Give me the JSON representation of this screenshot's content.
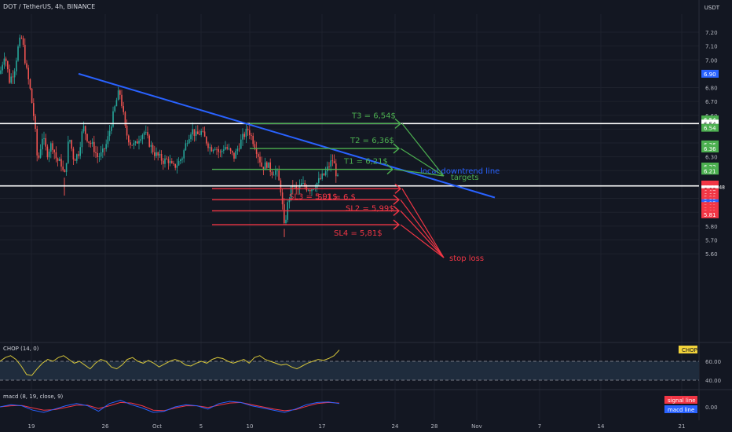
{
  "header": {
    "symbol_line": "DOT / TetherUS, 4h, BINANCE",
    "currency": "USDT"
  },
  "indicators": {
    "chop_label": "CHOP (14, 0)",
    "chop_tag": "CHOP",
    "chop_axis": [
      "60.00",
      "40.00"
    ],
    "macd_label": "macd (8, 19, close, 9)",
    "macd_axis": [
      "0.00"
    ],
    "signal_tag": "signal line",
    "macd_tag": "macd line"
  },
  "colors": {
    "background": "#131722",
    "bull": "#26a69a",
    "bear": "#ef5350",
    "downtrend": "#2962ff",
    "targets": "#4caf50",
    "stops": "#f23645",
    "chop_line": "#d4c43a",
    "macd_line": "#2962ff",
    "signal_line": "#f23645"
  },
  "chart_data": {
    "type": "candlestick",
    "symbol": "DOT / TetherUS",
    "interval": "4h",
    "exchange": "BINANCE",
    "price_ticks": [
      "7.20",
      "7.10",
      "7.00",
      "6.80",
      "6.70",
      "6.60",
      "6.50",
      "6.40",
      "6.30",
      "6.20",
      "6.00",
      "5.90",
      "5.80",
      "5.70",
      "5.60"
    ],
    "date_ticks": [
      "19",
      "26",
      "Oct",
      "5",
      "10",
      "17",
      "24",
      "28",
      "Nov",
      "7",
      "14",
      "21"
    ],
    "ylim": [
      5.55,
      7.27
    ],
    "path": [
      [
        0,
        6.9
      ],
      [
        6,
        7.05
      ],
      [
        12,
        6.85
      ],
      [
        18,
        6.92
      ],
      [
        24,
        7.12
      ],
      [
        28,
        7.16
      ],
      [
        33,
        6.95
      ],
      [
        38,
        6.8
      ],
      [
        44,
        6.55
      ],
      [
        48,
        6.25
      ],
      [
        54,
        6.45
      ],
      [
        60,
        6.32
      ],
      [
        66,
        6.4
      ],
      [
        72,
        6.28
      ],
      [
        78,
        6.25
      ],
      [
        82,
        6.15
      ],
      [
        88,
        6.45
      ],
      [
        94,
        6.28
      ],
      [
        100,
        6.33
      ],
      [
        106,
        6.52
      ],
      [
        112,
        6.42
      ],
      [
        118,
        6.38
      ],
      [
        124,
        6.3
      ],
      [
        130,
        6.32
      ],
      [
        136,
        6.4
      ],
      [
        142,
        6.55
      ],
      [
        148,
        6.7
      ],
      [
        152,
        6.78
      ],
      [
        156,
        6.65
      ],
      [
        160,
        6.48
      ],
      [
        166,
        6.4
      ],
      [
        172,
        6.38
      ],
      [
        178,
        6.45
      ],
      [
        184,
        6.48
      ],
      [
        190,
        6.4
      ],
      [
        196,
        6.33
      ],
      [
        202,
        6.3
      ],
      [
        208,
        6.27
      ],
      [
        214,
        6.28
      ],
      [
        220,
        6.22
      ],
      [
        226,
        6.25
      ],
      [
        232,
        6.3
      ],
      [
        238,
        6.42
      ],
      [
        244,
        6.5
      ],
      [
        250,
        6.45
      ],
      [
        256,
        6.48
      ],
      [
        262,
        6.42
      ],
      [
        268,
        6.36
      ],
      [
        274,
        6.38
      ],
      [
        280,
        6.32
      ],
      [
        286,
        6.38
      ],
      [
        292,
        6.34
      ],
      [
        298,
        6.3
      ],
      [
        304,
        6.38
      ],
      [
        310,
        6.45
      ],
      [
        316,
        6.5
      ],
      [
        322,
        6.42
      ],
      [
        328,
        6.33
      ],
      [
        334,
        6.22
      ],
      [
        340,
        6.25
      ],
      [
        346,
        6.19
      ],
      [
        352,
        6.2
      ],
      [
        358,
        6.05
      ],
      [
        362,
        5.78
      ],
      [
        366,
        5.95
      ],
      [
        372,
        6.1
      ],
      [
        378,
        6.05
      ],
      [
        384,
        6.1
      ],
      [
        390,
        6.08
      ],
      [
        396,
        6.07
      ],
      [
        402,
        6.1
      ],
      [
        408,
        6.14
      ],
      [
        414,
        6.18
      ],
      [
        420,
        6.25
      ],
      [
        424,
        6.28
      ],
      [
        428,
        6.18
      ],
      [
        432,
        6.1
      ]
    ],
    "notable_extremes": [
      {
        "x": 28,
        "high": 7.16
      },
      {
        "x": 82,
        "low": 6.02
      },
      {
        "x": 152,
        "high": 6.78
      },
      {
        "x": 362,
        "low": 5.72
      },
      {
        "x": 424,
        "high": 6.28
      }
    ],
    "horizontal_levels": [
      {
        "price": 6.54,
        "color": "white",
        "role": "resistance"
      },
      {
        "price": 6.09,
        "color": "white",
        "role": "support"
      }
    ],
    "targets": [
      {
        "label": "T3 = 6,54$",
        "price": 6.54
      },
      {
        "label": "T2 = 6,36$",
        "price": 6.36
      },
      {
        "label": "T1 = 6,21$",
        "price": 6.21
      }
    ],
    "targets_label": "targets",
    "stop_losses": [
      {
        "label": "SL1 = 6,$",
        "price": 6.07
      },
      {
        "label": "SL2 = 5,99$",
        "price": 5.99
      },
      {
        "label": "SL3 = 5,91$",
        "price": 5.91
      },
      {
        "label": "SL4 = 5,81$",
        "price": 5.81
      }
    ],
    "stop_loss_label": "stop loss",
    "trendline": {
      "label": "local downtrend line",
      "from_price": 6.9,
      "to_price": 6.04
    },
    "axis_tags": [
      {
        "text": "6.90",
        "price": 6.9,
        "color": "#2962ff"
      },
      {
        "text": "6.54",
        "price": 6.57,
        "color": "#4caf50"
      },
      {
        "text": "6.54",
        "price": 6.54,
        "color": "#ffffff"
      },
      {
        "text": "6.54",
        "price": 6.51,
        "color": "#4caf50"
      },
      {
        "text": "6.36",
        "price": 6.39,
        "color": "#4caf50"
      },
      {
        "text": "6.36",
        "price": 6.36,
        "color": "#4caf50"
      },
      {
        "text": "6.22",
        "price": 6.23,
        "color": "#4caf50"
      },
      {
        "text": "6.21",
        "price": 6.2,
        "color": "#4caf50"
      },
      {
        "text": "6.10",
        "price": 6.1,
        "color": "#f23645"
      },
      {
        "text": "01:10:48",
        "price": 6.085,
        "color": "#f23645"
      },
      {
        "text": "6.08",
        "price": 6.065,
        "color": "#ffffff"
      },
      {
        "text": "6.07",
        "price": 6.045,
        "color": "#f23645"
      },
      {
        "text": "6.06",
        "price": 6.025,
        "color": "#f23645"
      },
      {
        "text": "5.99",
        "price": 6.005,
        "color": "#f23645"
      },
      {
        "text": "5.99",
        "price": 5.985,
        "color": "#f23645"
      },
      {
        "text": "5.95",
        "price": 5.965,
        "color": "#2962ff"
      },
      {
        "text": "5.92",
        "price": 5.945,
        "color": "#f23645"
      },
      {
        "text": "5.91",
        "price": 5.925,
        "color": "#f23645"
      },
      {
        "text": "5.81",
        "price": 5.905,
        "color": "#f23645"
      },
      {
        "text": "5.81",
        "price": 5.885,
        "color": "#f23645"
      }
    ],
    "chop_series": {
      "range": [
        30,
        80
      ],
      "band": [
        40,
        60
      ],
      "values": [
        60,
        64,
        66,
        62,
        55,
        46,
        45,
        52,
        58,
        62,
        60,
        64,
        66,
        62,
        58,
        60,
        56,
        52,
        58,
        62,
        60,
        54,
        52,
        56,
        62,
        64,
        60,
        58,
        61,
        58,
        54,
        57,
        60,
        62,
        60,
        56,
        55,
        58,
        60,
        58,
        62,
        64,
        63,
        60,
        58,
        60,
        62,
        58,
        64,
        66,
        62,
        60,
        58,
        56,
        57,
        54,
        52,
        55,
        58,
        60,
        62,
        61,
        63,
        66,
        72
      ]
    },
    "macd_series": {
      "range": [
        -1,
        1
      ],
      "macd": [
        0.0,
        0.2,
        0.1,
        -0.3,
        -0.5,
        -0.2,
        0.1,
        0.3,
        0.1,
        -0.4,
        0.3,
        0.6,
        0.2,
        -0.1,
        -0.5,
        -0.4,
        0.0,
        0.2,
        0.1,
        -0.2,
        0.3,
        0.5,
        0.4,
        0.1,
        -0.1,
        -0.3,
        -0.5,
        -0.2,
        0.2,
        0.4,
        0.45,
        0.3
      ],
      "signal": [
        0.0,
        0.1,
        0.12,
        -0.1,
        -0.3,
        -0.25,
        -0.05,
        0.15,
        0.15,
        -0.15,
        0.1,
        0.4,
        0.35,
        0.1,
        -0.3,
        -0.35,
        -0.1,
        0.1,
        0.1,
        -0.05,
        0.15,
        0.35,
        0.4,
        0.2,
        0.0,
        -0.2,
        -0.35,
        -0.25,
        0.05,
        0.3,
        0.4,
        0.35
      ]
    }
  }
}
